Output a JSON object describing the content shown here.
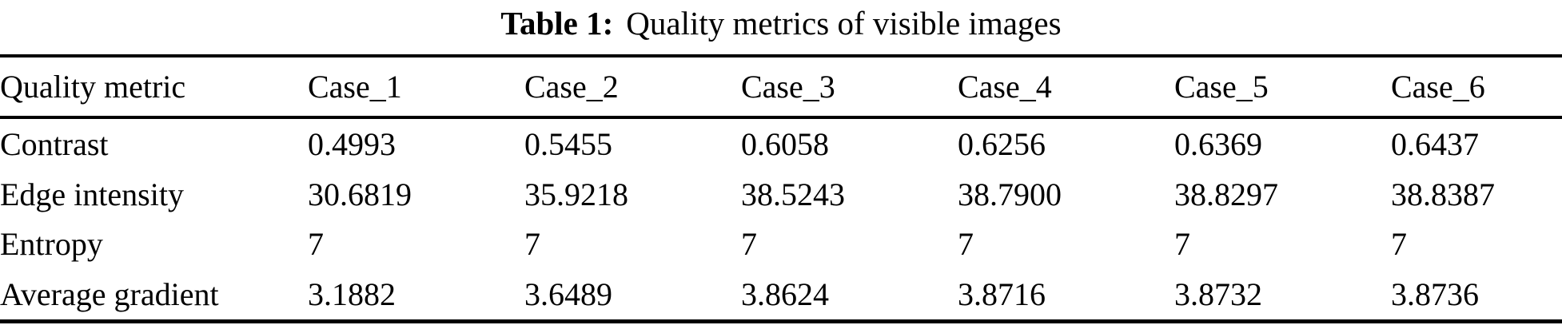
{
  "page": {
    "background": "#ffffff",
    "text_color": "#000000",
    "rule_color": "#000000"
  },
  "caption": {
    "label": "Table 1:",
    "text": "Quality metrics of visible images"
  },
  "table": {
    "columns": [
      "Quality metric",
      "Case_1",
      "Case_2",
      "Case_3",
      "Case_4",
      "Case_5",
      "Case_6"
    ],
    "rows": [
      {
        "metric": "Contrast",
        "values": [
          "0.4993",
          "0.5455",
          "0.6058",
          "0.6256",
          "0.6369",
          "0.6437"
        ]
      },
      {
        "metric": "Edge intensity",
        "values": [
          "30.6819",
          "35.9218",
          "38.5243",
          "38.7900",
          "38.8297",
          "38.8387"
        ]
      },
      {
        "metric": "Entropy",
        "values": [
          "7",
          "7",
          "7",
          "7",
          "7",
          "7"
        ]
      },
      {
        "metric": "Average gradient",
        "values": [
          "3.1882",
          "3.6489",
          "3.8624",
          "3.8716",
          "3.8732",
          "3.8736"
        ]
      }
    ]
  },
  "chart_data": {
    "type": "table",
    "title": "Table 1: Quality metrics of visible images",
    "categories": [
      "Case_1",
      "Case_2",
      "Case_3",
      "Case_4",
      "Case_5",
      "Case_6"
    ],
    "series": [
      {
        "name": "Contrast",
        "values": [
          0.4993,
          0.5455,
          0.6058,
          0.6256,
          0.6369,
          0.6437
        ]
      },
      {
        "name": "Edge intensity",
        "values": [
          30.6819,
          35.9218,
          38.5243,
          38.79,
          38.8297,
          38.8387
        ]
      },
      {
        "name": "Entropy",
        "values": [
          7,
          7,
          7,
          7,
          7,
          7
        ]
      },
      {
        "name": "Average gradient",
        "values": [
          3.1882,
          3.6489,
          3.8624,
          3.8716,
          3.8732,
          3.8736
        ]
      }
    ]
  }
}
